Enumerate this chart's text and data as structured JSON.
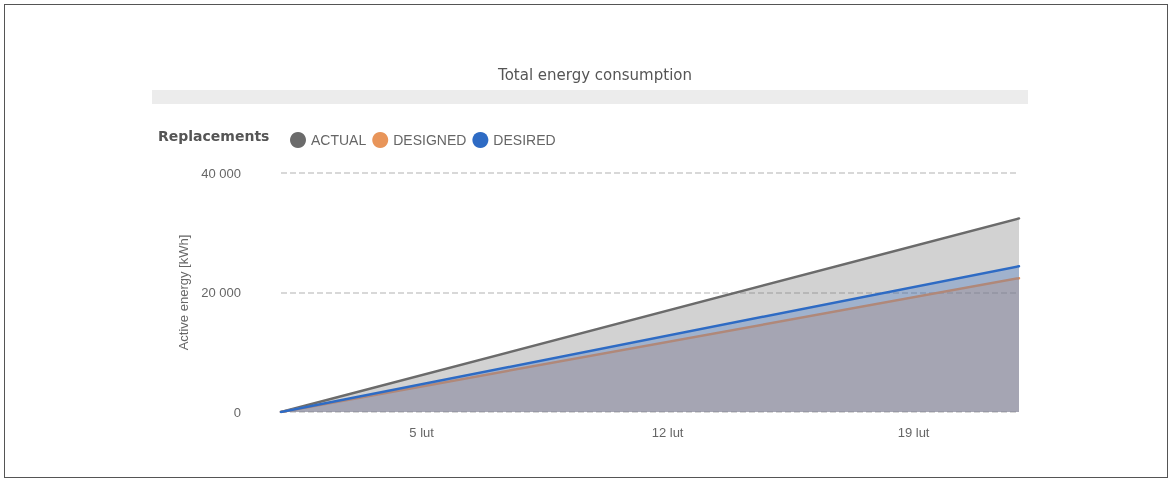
{
  "chart_data": {
    "type": "area",
    "title": "Total energy consumption",
    "ylabel": "Active energy [kWh]",
    "legend_title": "Replacements",
    "legend": "top left",
    "grid": "y",
    "x": [
      "--02-01",
      "--02-22"
    ],
    "series": [
      {
        "name": "ACTUAL",
        "color": "#6b6b6b",
        "values": [
          0,
          32400
        ]
      },
      {
        "name": "DESIGNED",
        "color": "#e8955a",
        "values": [
          0,
          22400
        ]
      },
      {
        "name": "DESIRED",
        "color": "#2e6bc4",
        "values": [
          0,
          24400
        ]
      }
    ],
    "xlim": [
      "--02-01",
      "--02-22"
    ],
    "xticks": [
      {
        "value": "--02-05",
        "label": "5 lut"
      },
      {
        "value": "--02-12",
        "label": "12 lut"
      },
      {
        "value": "--02-19",
        "label": "19 lut"
      }
    ],
    "ylim": [
      0,
      40000
    ],
    "yticks": [
      {
        "value": 0,
        "label": "0"
      },
      {
        "value": 20000,
        "label": "20 000"
      },
      {
        "value": 40000,
        "label": "40 000"
      }
    ]
  }
}
